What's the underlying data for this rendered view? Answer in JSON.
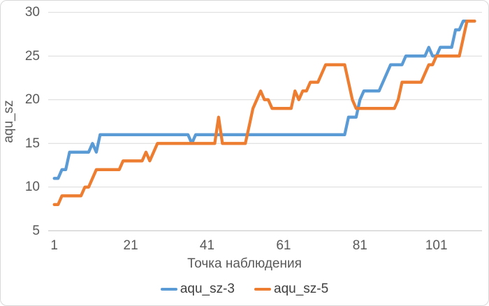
{
  "chart_data": {
    "type": "line",
    "title": "",
    "xlabel": "Точка наблюдения",
    "ylabel": "aqu_sz",
    "x_ticks": [
      1,
      21,
      41,
      61,
      81,
      101
    ],
    "y_ticks": [
      5,
      10,
      15,
      20,
      25,
      30
    ],
    "xlim": [
      1,
      111
    ],
    "ylim": [
      5,
      30
    ],
    "grid": "horizontal",
    "legend_position": "bottom",
    "x_start": 1,
    "x_step": 1,
    "series": [
      {
        "name": "aqu_sz-3",
        "color": "#5B9BD5",
        "values": [
          11,
          11,
          12,
          12,
          14,
          14,
          14,
          14,
          14,
          14,
          15,
          14,
          16,
          16,
          16,
          16,
          16,
          16,
          16,
          16,
          16,
          16,
          16,
          16,
          16,
          16,
          16,
          16,
          16,
          16,
          16,
          16,
          16,
          16,
          16,
          16,
          15,
          16,
          16,
          16,
          16,
          16,
          16,
          16,
          16,
          16,
          16,
          16,
          16,
          16,
          16,
          16,
          16,
          16,
          16,
          16,
          16,
          16,
          16,
          16,
          16,
          16,
          16,
          16,
          16,
          16,
          16,
          16,
          16,
          16,
          16,
          16,
          16,
          16,
          16,
          16,
          16,
          18,
          18,
          18,
          20,
          21,
          21,
          21,
          21,
          21,
          22,
          23,
          24,
          24,
          24,
          24,
          25,
          25,
          25,
          25,
          25,
          25,
          26,
          25,
          25,
          26,
          26,
          26,
          26,
          28,
          28,
          29,
          29,
          29,
          29
        ]
      },
      {
        "name": "aqu_sz-5",
        "color": "#ED7D31",
        "values": [
          8,
          8,
          9,
          9,
          9,
          9,
          9,
          9,
          10,
          10,
          11,
          12,
          12,
          12,
          12,
          12,
          12,
          12,
          13,
          13,
          13,
          13,
          13,
          13,
          14,
          13,
          14,
          15,
          15,
          15,
          15,
          15,
          15,
          15,
          15,
          15,
          15,
          15,
          15,
          15,
          15,
          15,
          15,
          18,
          15,
          15,
          15,
          15,
          15,
          15,
          15,
          17,
          19,
          20,
          21,
          20,
          20,
          19,
          19,
          19,
          19,
          19,
          19,
          21,
          20,
          21,
          21,
          22,
          22,
          22,
          23,
          24,
          24,
          24,
          24,
          24,
          24,
          22,
          20,
          19,
          19,
          19,
          19,
          19,
          19,
          19,
          19,
          19,
          19,
          19,
          20,
          22,
          22,
          22,
          22,
          22,
          22,
          23,
          24,
          24,
          25,
          25,
          25,
          25,
          25,
          25,
          25,
          27,
          29,
          29,
          29
        ]
      }
    ],
    "colors": {
      "gridline": "#D9D9D9",
      "axis_line": "#BFBFBF",
      "tick_text": "#595959"
    }
  }
}
